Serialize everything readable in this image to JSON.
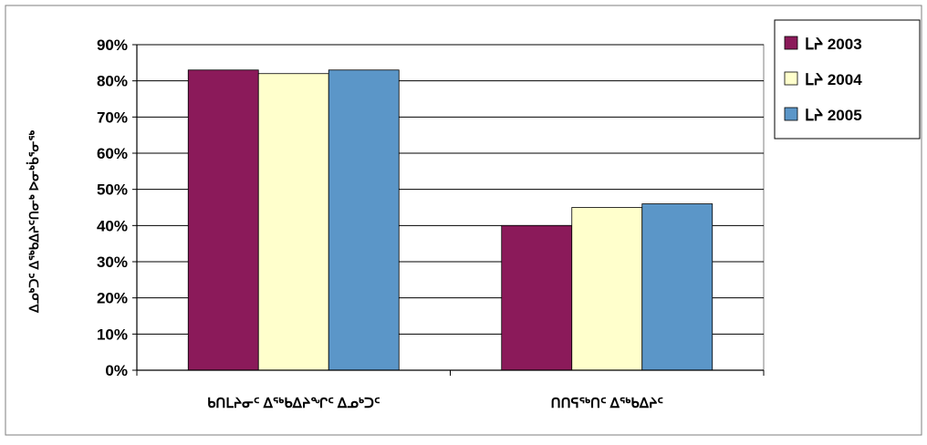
{
  "chart_data": {
    "type": "bar",
    "title": "",
    "xlabel": "",
    "ylabel": "ᐃᓄᒃᑐᑦ ᐃᖅᑲᐃᔨᑦᑎᓂᒃ ᐅᓂᒃᑳᕐᓂᖅ",
    "categories": [
      "ᑲᑎᒪᔨᓂᑦ ᐃᖅᑲᐃᔨᖏᑦ ᐃᓄᒃᑐᑦ",
      "ᑎᑎᕋᖅᑎᑦ ᐃᖅᑲᐃᔨᑦ"
    ],
    "series": [
      {
        "name": "ᒪᔨ 2003",
        "color": "#8b1a5a",
        "values": [
          83,
          40
        ]
      },
      {
        "name": "ᒪᔨ 2004",
        "color": "#ffffcc",
        "values": [
          82,
          45
        ]
      },
      {
        "name": "ᒪᔨ 2005",
        "color": "#5b96c8",
        "values": [
          83,
          46
        ]
      }
    ],
    "ylim": [
      0,
      90
    ],
    "yticks": [
      "0%",
      "10%",
      "20%",
      "30%",
      "40%",
      "50%",
      "60%",
      "70%",
      "80%",
      "90%"
    ],
    "grid": true,
    "legend_position": "top-right"
  }
}
